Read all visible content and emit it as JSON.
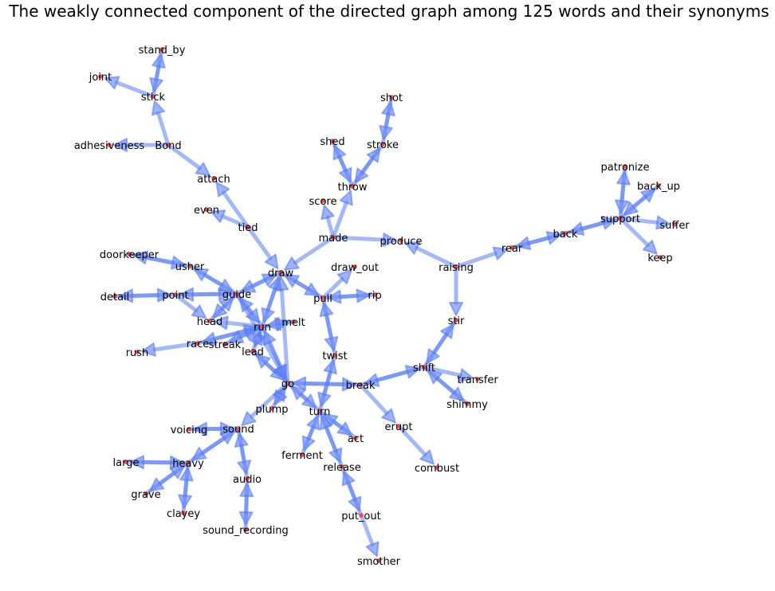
{
  "title": "The weakly connected component of the directed graph among 125 words and their synonyms",
  "colors": {
    "edge": "#5b7ef5",
    "node": "#ff4d4d",
    "background": "#ffffff",
    "text": "#000000"
  },
  "nodes": [
    {
      "id": "stand_by",
      "label": "stand_by"
    },
    {
      "id": "joint",
      "label": "joint"
    },
    {
      "id": "stick",
      "label": "stick"
    },
    {
      "id": "adhesiveness",
      "label": "adhesiveness"
    },
    {
      "id": "Bond",
      "label": "Bond"
    },
    {
      "id": "attach",
      "label": "attach"
    },
    {
      "id": "even",
      "label": "even"
    },
    {
      "id": "tied",
      "label": "tied"
    },
    {
      "id": "shot",
      "label": "shot"
    },
    {
      "id": "shed",
      "label": "shed"
    },
    {
      "id": "stroke",
      "label": "stroke"
    },
    {
      "id": "throw",
      "label": "throw"
    },
    {
      "id": "score",
      "label": "score"
    },
    {
      "id": "made",
      "label": "made"
    },
    {
      "id": "produce",
      "label": "produce"
    },
    {
      "id": "raising",
      "label": "raising"
    },
    {
      "id": "rear",
      "label": "rear"
    },
    {
      "id": "back",
      "label": "back"
    },
    {
      "id": "support",
      "label": "support"
    },
    {
      "id": "patronize",
      "label": "patronize"
    },
    {
      "id": "back_up",
      "label": "back_up"
    },
    {
      "id": "suffer",
      "label": "suffer"
    },
    {
      "id": "keep",
      "label": "keep"
    },
    {
      "id": "doorkeeper",
      "label": "doorkeeper"
    },
    {
      "id": "usher",
      "label": "usher"
    },
    {
      "id": "draw",
      "label": "draw"
    },
    {
      "id": "draw_out",
      "label": "draw_out"
    },
    {
      "id": "pull",
      "label": "pull"
    },
    {
      "id": "rip",
      "label": "rip"
    },
    {
      "id": "detail",
      "label": "detail"
    },
    {
      "id": "point",
      "label": "point"
    },
    {
      "id": "guide",
      "label": "guide"
    },
    {
      "id": "head",
      "label": "head"
    },
    {
      "id": "run",
      "label": "run"
    },
    {
      "id": "melt",
      "label": "melt"
    },
    {
      "id": "rush",
      "label": "rush"
    },
    {
      "id": "race",
      "label": "race"
    },
    {
      "id": "streak",
      "label": "streak"
    },
    {
      "id": "lead",
      "label": "lead"
    },
    {
      "id": "stir",
      "label": "stir"
    },
    {
      "id": "twist",
      "label": "twist"
    },
    {
      "id": "shift",
      "label": "shift"
    },
    {
      "id": "transfer",
      "label": "transfer"
    },
    {
      "id": "shimmy",
      "label": "shimmy"
    },
    {
      "id": "go",
      "label": "go"
    },
    {
      "id": "break",
      "label": "break"
    },
    {
      "id": "plump",
      "label": "plump"
    },
    {
      "id": "turn",
      "label": "turn"
    },
    {
      "id": "erupt",
      "label": "erupt"
    },
    {
      "id": "voicing",
      "label": "voicing"
    },
    {
      "id": "sound",
      "label": "sound"
    },
    {
      "id": "act",
      "label": "act"
    },
    {
      "id": "ferment",
      "label": "ferment"
    },
    {
      "id": "release",
      "label": "release"
    },
    {
      "id": "combust",
      "label": "combust"
    },
    {
      "id": "large",
      "label": "large"
    },
    {
      "id": "heavy",
      "label": "heavy"
    },
    {
      "id": "grave",
      "label": "grave"
    },
    {
      "id": "audio",
      "label": "audio"
    },
    {
      "id": "clayey",
      "label": "clayey"
    },
    {
      "id": "put_out",
      "label": "put_out"
    },
    {
      "id": "sound_recording",
      "label": "sound_recording"
    },
    {
      "id": "smother",
      "label": "smother"
    }
  ],
  "edges": [
    {
      "source": "stick",
      "target": "stand_by"
    },
    {
      "source": "stand_by",
      "target": "stick"
    },
    {
      "source": "stick",
      "target": "joint"
    },
    {
      "source": "Bond",
      "target": "stick"
    },
    {
      "source": "Bond",
      "target": "adhesiveness"
    },
    {
      "source": "Bond",
      "target": "attach"
    },
    {
      "source": "tied",
      "target": "attach"
    },
    {
      "source": "tied",
      "target": "even"
    },
    {
      "source": "tied",
      "target": "draw"
    },
    {
      "source": "stroke",
      "target": "shot"
    },
    {
      "source": "shot",
      "target": "stroke"
    },
    {
      "source": "throw",
      "target": "stroke"
    },
    {
      "source": "stroke",
      "target": "throw"
    },
    {
      "source": "throw",
      "target": "shed"
    },
    {
      "source": "shed",
      "target": "throw"
    },
    {
      "source": "made",
      "target": "throw"
    },
    {
      "source": "made",
      "target": "score"
    },
    {
      "source": "made",
      "target": "produce"
    },
    {
      "source": "made",
      "target": "draw"
    },
    {
      "source": "raising",
      "target": "produce"
    },
    {
      "source": "raising",
      "target": "rear"
    },
    {
      "source": "raising",
      "target": "stir"
    },
    {
      "source": "rear",
      "target": "back"
    },
    {
      "source": "back",
      "target": "rear"
    },
    {
      "source": "back",
      "target": "support"
    },
    {
      "source": "support",
      "target": "back"
    },
    {
      "source": "support",
      "target": "patronize"
    },
    {
      "source": "patronize",
      "target": "support"
    },
    {
      "source": "support",
      "target": "back_up"
    },
    {
      "source": "back_up",
      "target": "support"
    },
    {
      "source": "support",
      "target": "suffer"
    },
    {
      "source": "support",
      "target": "keep"
    },
    {
      "source": "usher",
      "target": "doorkeeper"
    },
    {
      "source": "doorkeeper",
      "target": "usher"
    },
    {
      "source": "guide",
      "target": "usher"
    },
    {
      "source": "usher",
      "target": "guide"
    },
    {
      "source": "guide",
      "target": "draw"
    },
    {
      "source": "draw",
      "target": "guide"
    },
    {
      "source": "pull",
      "target": "draw"
    },
    {
      "source": "draw",
      "target": "pull"
    },
    {
      "source": "pull",
      "target": "draw_out"
    },
    {
      "source": "pull",
      "target": "rip"
    },
    {
      "source": "rip",
      "target": "pull"
    },
    {
      "source": "pull",
      "target": "twist"
    },
    {
      "source": "twist",
      "target": "pull"
    },
    {
      "source": "point",
      "target": "detail"
    },
    {
      "source": "detail",
      "target": "point"
    },
    {
      "source": "guide",
      "target": "point"
    },
    {
      "source": "point",
      "target": "guide"
    },
    {
      "source": "point",
      "target": "head"
    },
    {
      "source": "head",
      "target": "guide"
    },
    {
      "source": "guide",
      "target": "head"
    },
    {
      "source": "guide",
      "target": "run"
    },
    {
      "source": "run",
      "target": "guide"
    },
    {
      "source": "run",
      "target": "draw"
    },
    {
      "source": "draw",
      "target": "run"
    },
    {
      "source": "run",
      "target": "melt"
    },
    {
      "source": "melt",
      "target": "run"
    },
    {
      "source": "run",
      "target": "head"
    },
    {
      "source": "run",
      "target": "streak"
    },
    {
      "source": "streak",
      "target": "run"
    },
    {
      "source": "race",
      "target": "rush"
    },
    {
      "source": "race",
      "target": "run"
    },
    {
      "source": "run",
      "target": "race"
    },
    {
      "source": "run",
      "target": "lead"
    },
    {
      "source": "lead",
      "target": "run"
    },
    {
      "source": "run",
      "target": "go"
    },
    {
      "source": "go",
      "target": "run"
    },
    {
      "source": "go",
      "target": "lead"
    },
    {
      "source": "lead",
      "target": "go"
    },
    {
      "source": "guide",
      "target": "go"
    },
    {
      "source": "go",
      "target": "draw"
    },
    {
      "source": "twist",
      "target": "turn"
    },
    {
      "source": "turn",
      "target": "twist"
    },
    {
      "source": "go",
      "target": "break"
    },
    {
      "source": "break",
      "target": "go"
    },
    {
      "source": "go",
      "target": "turn"
    },
    {
      "source": "turn",
      "target": "go"
    },
    {
      "source": "go",
      "target": "plump"
    },
    {
      "source": "plump",
      "target": "go"
    },
    {
      "source": "go",
      "target": "sound"
    },
    {
      "source": "shift",
      "target": "break"
    },
    {
      "source": "break",
      "target": "shift"
    },
    {
      "source": "shift",
      "target": "stir"
    },
    {
      "source": "stir",
      "target": "shift"
    },
    {
      "source": "shift",
      "target": "transfer"
    },
    {
      "source": "shift",
      "target": "shimmy"
    },
    {
      "source": "shimmy",
      "target": "shift"
    },
    {
      "source": "break",
      "target": "erupt"
    },
    {
      "source": "erupt",
      "target": "combust"
    },
    {
      "source": "turn",
      "target": "act"
    },
    {
      "source": "act",
      "target": "turn"
    },
    {
      "source": "turn",
      "target": "ferment"
    },
    {
      "source": "ferment",
      "target": "turn"
    },
    {
      "source": "turn",
      "target": "release"
    },
    {
      "source": "release",
      "target": "turn"
    },
    {
      "source": "release",
      "target": "put_out"
    },
    {
      "source": "put_out",
      "target": "release"
    },
    {
      "source": "put_out",
      "target": "smother"
    },
    {
      "source": "sound",
      "target": "voicing"
    },
    {
      "source": "voicing",
      "target": "sound"
    },
    {
      "source": "sound",
      "target": "heavy"
    },
    {
      "source": "heavy",
      "target": "sound"
    },
    {
      "source": "sound",
      "target": "audio"
    },
    {
      "source": "audio",
      "target": "sound"
    },
    {
      "source": "audio",
      "target": "sound_recording"
    },
    {
      "source": "sound_recording",
      "target": "audio"
    },
    {
      "source": "heavy",
      "target": "large"
    },
    {
      "source": "large",
      "target": "heavy"
    },
    {
      "source": "heavy",
      "target": "grave"
    },
    {
      "source": "grave",
      "target": "heavy"
    },
    {
      "source": "heavy",
      "target": "clayey"
    },
    {
      "source": "clayey",
      "target": "heavy"
    }
  ]
}
